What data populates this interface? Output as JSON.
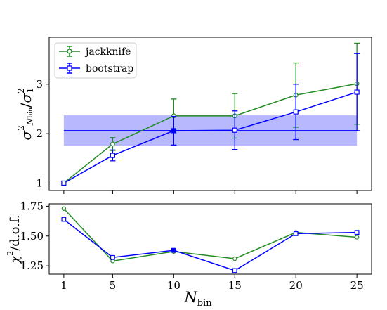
{
  "chart_data": [
    {
      "type": "line",
      "panel": "top",
      "ylabel": "σ²_{N_bin} / σ²_1",
      "xlim": [
        -0.2,
        26.2
      ],
      "ylim": [
        0.85,
        3.95
      ],
      "yticks": [
        1,
        2,
        3
      ],
      "x": [
        1,
        5,
        10,
        15,
        20,
        25
      ],
      "legend": {
        "placement": "top-left",
        "entries": [
          "jackknife",
          "bootstrap"
        ]
      },
      "band": {
        "color": "#0000ff",
        "center": 2.06,
        "lower": 1.76,
        "upper": 2.37,
        "xrange": [
          1,
          25
        ]
      },
      "series": [
        {
          "name": "jackknife",
          "color": "#228b22",
          "marker": "circle",
          "values": [
            1.0,
            1.79,
            2.36,
            2.36,
            2.78,
            3.01
          ],
          "errors": [
            0.0,
            0.13,
            0.34,
            0.45,
            0.65,
            0.82
          ]
        },
        {
          "name": "bootstrap",
          "color": "#0000ff",
          "marker": "square",
          "values": [
            1.0,
            1.56,
            2.06,
            2.07,
            2.44,
            2.84
          ],
          "errors": [
            0.0,
            0.11,
            0.29,
            0.39,
            0.56,
            0.78
          ],
          "filled_index": 2
        }
      ],
      "grid": false
    },
    {
      "type": "line",
      "panel": "bottom",
      "xlabel": "N_bin",
      "ylabel": "χ²/d.o.f.",
      "xlim": [
        -0.2,
        26.2
      ],
      "ylim": [
        1.18,
        1.77
      ],
      "xticks": [
        1,
        5,
        10,
        15,
        20,
        25
      ],
      "ytick_labels": [
        "1.25",
        "1.50",
        "1.75"
      ],
      "yticks": [
        1.25,
        1.5,
        1.75
      ],
      "x": [
        1,
        5,
        10,
        15,
        20,
        25
      ],
      "series": [
        {
          "name": "jackknife",
          "color": "#228b22",
          "marker": "circle",
          "values": [
            1.73,
            1.29,
            1.37,
            1.31,
            1.53,
            1.49
          ]
        },
        {
          "name": "bootstrap",
          "color": "#0000ff",
          "marker": "square",
          "values": [
            1.64,
            1.32,
            1.38,
            1.21,
            1.52,
            1.53
          ],
          "filled_index": 2
        }
      ],
      "grid": false
    }
  ]
}
